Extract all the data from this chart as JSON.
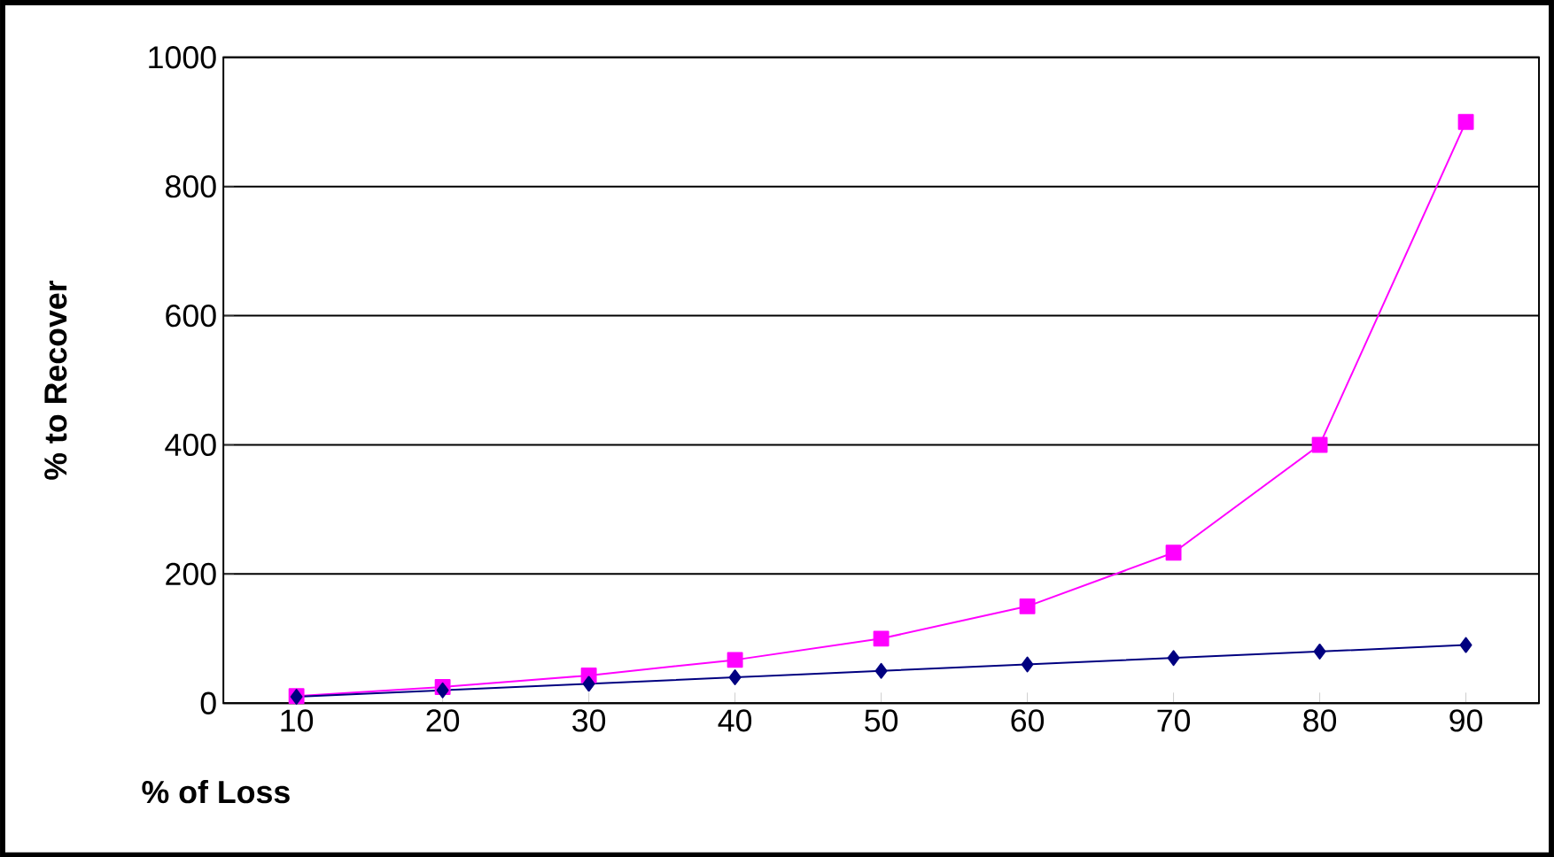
{
  "chart_data": {
    "type": "line",
    "xlabel": "% of Loss",
    "ylabel": "% to Recover",
    "categories": [
      "10",
      "20",
      "30",
      "40",
      "50",
      "60",
      "70",
      "80",
      "90"
    ],
    "series": [
      {
        "color": "#000080",
        "marker": "diamond",
        "values": [
          10,
          20,
          30,
          40,
          50,
          60,
          70,
          80,
          90
        ]
      },
      {
        "color": "#ff00ff",
        "marker": "square",
        "values": [
          11,
          25,
          43,
          67,
          100,
          150,
          233,
          400,
          900
        ]
      }
    ],
    "ylim": [
      0,
      1000
    ],
    "yticks": [
      0,
      200,
      400,
      600,
      800,
      1000
    ],
    "grid": "y"
  }
}
